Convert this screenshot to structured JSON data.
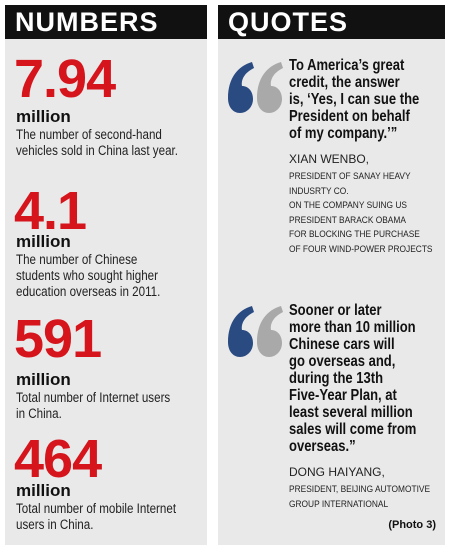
{
  "numbers": {
    "title": "NUMBERS",
    "items": [
      {
        "figure": "7.94",
        "unit": "million",
        "description": [
          "The number of second-hand",
          "vehicles sold in China last year."
        ]
      },
      {
        "figure": "4.1",
        "unit": "million",
        "description": [
          "The number of Chinese",
          "students who sought higher",
          "education overseas in 2011."
        ]
      },
      {
        "figure": "591",
        "unit": "million",
        "description": [
          "Total number of Internet users",
          "in China."
        ]
      },
      {
        "figure": "464",
        "unit": "million",
        "description": [
          "Total number of mobile Internet",
          "users in China."
        ]
      }
    ]
  },
  "quotes": {
    "title": "QUOTES",
    "items": [
      {
        "text": [
          "To America’s great",
          "credit, the answer",
          "is, ‘Yes, I can sue the",
          "President on behalf",
          "of my company.’”"
        ],
        "speaker": "XIAN WENBO,",
        "role": [
          "PRESIDENT OF SANAY HEAVY",
          "INDUSRTY CO.",
          "ON THE COMPANY SUING US",
          "PRESIDENT BARACK OBAMA",
          "FOR BLOCKING THE PURCHASE",
          "OF FOUR WIND-POWER PROJECTS"
        ]
      },
      {
        "text": [
          "Sooner or later",
          "more than 10 million",
          "Chinese cars will",
          "go overseas and,",
          "during the 13th",
          "Five-Year Plan, at",
          "least several million",
          "sales will come from",
          "overseas.”"
        ],
        "speaker": "DONG HAIYANG,",
        "role": [
          "PRESIDENT, BEIJING AUTOMOTIVE",
          "GROUP INTERNATIONAL"
        ]
      }
    ],
    "credit": "(Photo 3)"
  }
}
